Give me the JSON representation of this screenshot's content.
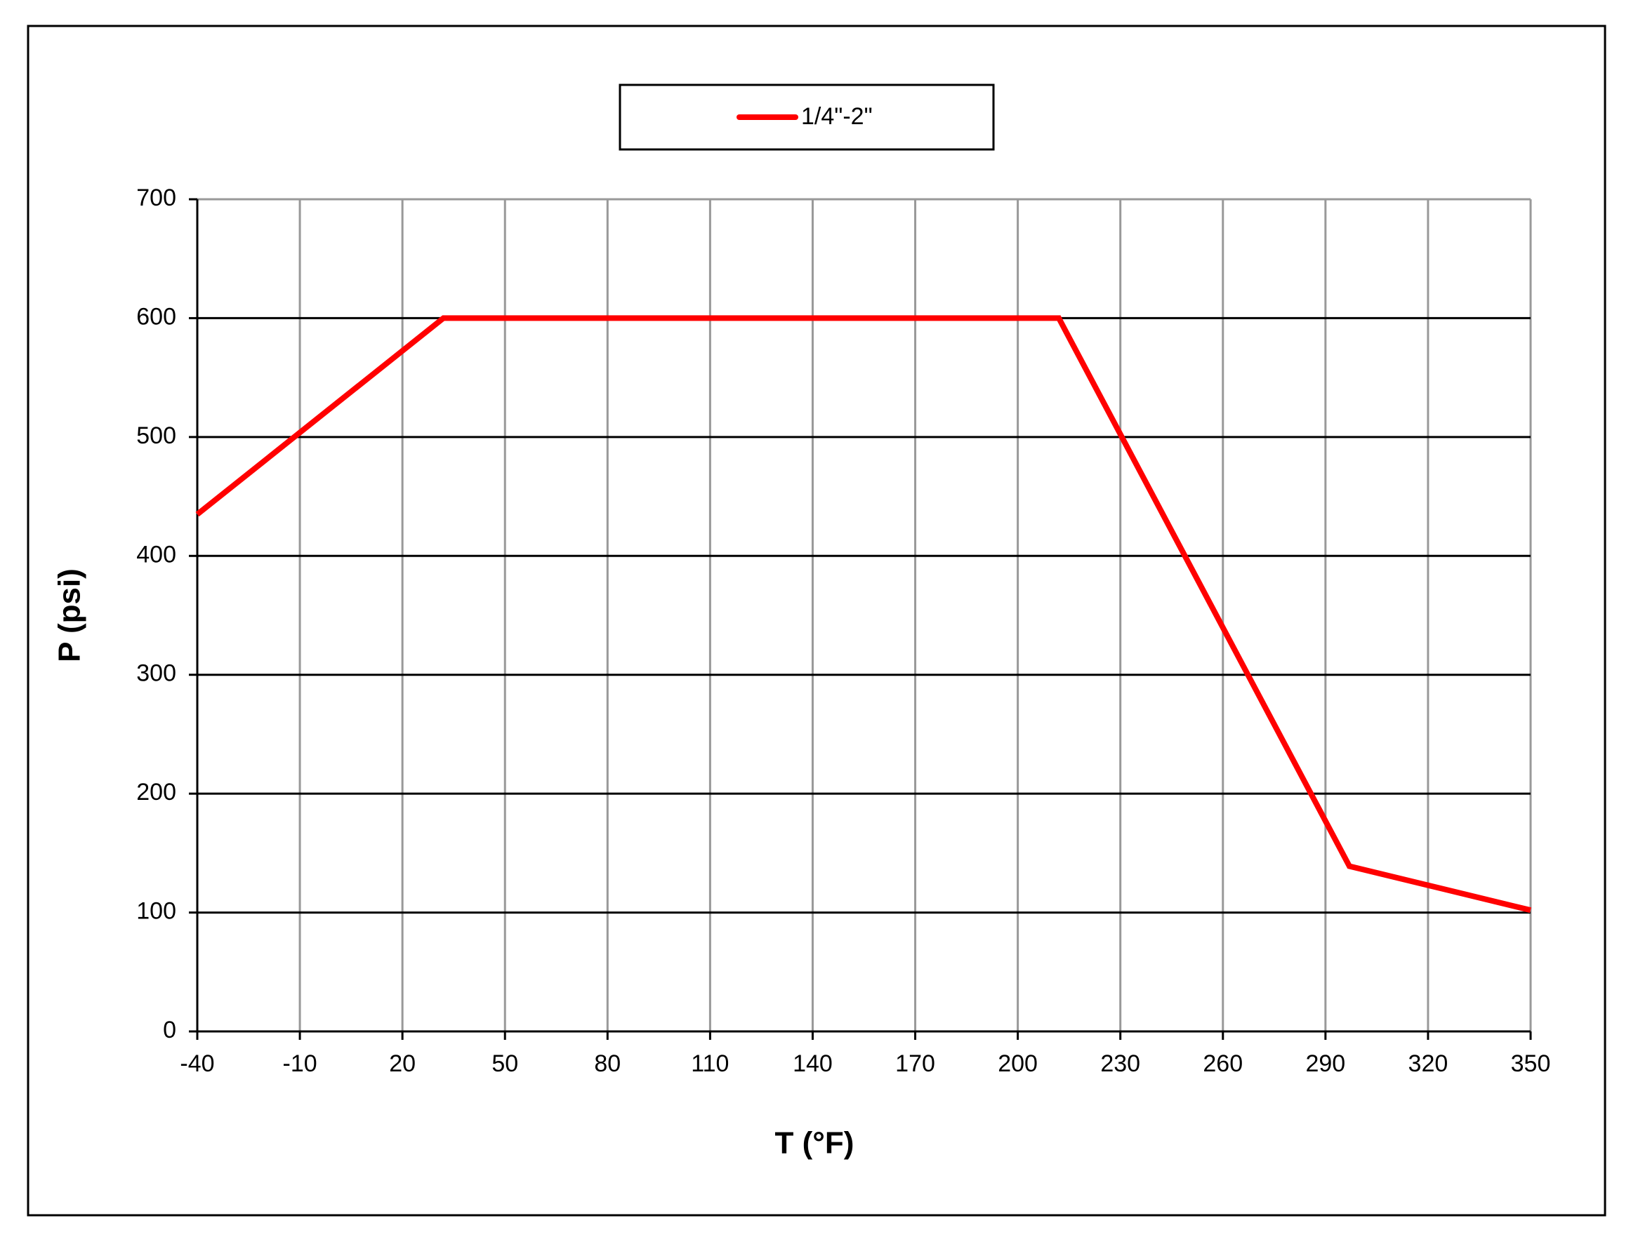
{
  "chart_data": {
    "type": "line",
    "x_label": "T (°F)",
    "y_label": "P (psi)",
    "x": [
      -40,
      32,
      212,
      297,
      350
    ],
    "series": [
      {
        "name": "1/4\"-2\"",
        "color": "#ff0000",
        "values": [
          435,
          600,
          600,
          139,
          102
        ]
      }
    ],
    "xlim": [
      -40,
      350
    ],
    "xticks": [
      -40,
      -10,
      20,
      50,
      80,
      110,
      140,
      170,
      200,
      230,
      260,
      290,
      320,
      350
    ],
    "ylim": [
      0,
      700
    ],
    "yticks": [
      0,
      100,
      200,
      300,
      400,
      500,
      600,
      700
    ],
    "grid": true,
    "legend": "top"
  }
}
